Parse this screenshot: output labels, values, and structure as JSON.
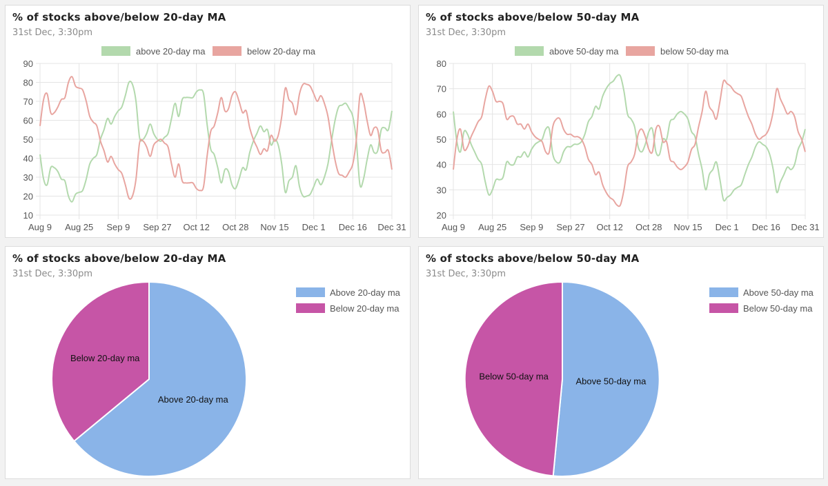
{
  "colors": {
    "above_line": "#b3d9ad",
    "below_line": "#e8a5a0",
    "above_pie": "#8ab4e8",
    "below_pie": "#c655a6",
    "grid": "#e4e4e4"
  },
  "chart_data": [
    {
      "type": "line",
      "title": "% of stocks above/below 20-day MA",
      "subtitle": "31st Dec, 3:30pm",
      "x_tick_labels": [
        "Aug 9",
        "Aug 25",
        "Sep 9",
        "Sep 27",
        "Oct 12",
        "Oct 28",
        "Nov 15",
        "Dec 1",
        "Dec 16",
        "Dec 31"
      ],
      "ylim": [
        10,
        90
      ],
      "yticks": [
        10,
        20,
        30,
        40,
        50,
        60,
        70,
        80,
        90
      ],
      "legend_position": "top-center",
      "series": [
        {
          "name": "above 20-day ma",
          "color_key": "above_line",
          "values": [
            42,
            29,
            26,
            35,
            35,
            33,
            29,
            28,
            20,
            17,
            21,
            22,
            23,
            29,
            37,
            40,
            42,
            50,
            55,
            61,
            58,
            62,
            65,
            67,
            73,
            80,
            79,
            70,
            51,
            50,
            53,
            58,
            53,
            50,
            49,
            51,
            53,
            61,
            69,
            62,
            71,
            72,
            72,
            72,
            75,
            76,
            74,
            58,
            45,
            42,
            35,
            27,
            34,
            33,
            26,
            24,
            29,
            35,
            34,
            43,
            49,
            53,
            57,
            54,
            55,
            47,
            50,
            47,
            37,
            22,
            28,
            30,
            36,
            25,
            20,
            20,
            21,
            25,
            29,
            26,
            30,
            37,
            49,
            60,
            67,
            68,
            69,
            66,
            62,
            49,
            26,
            29,
            39,
            47,
            43,
            44,
            55,
            56,
            55,
            65
          ]
        },
        {
          "name": "below 20-day ma",
          "color_key": "below_line",
          "values": [
            57,
            71,
            74,
            64,
            64,
            67,
            71,
            72,
            80,
            83,
            78,
            77,
            76,
            70,
            62,
            59,
            57,
            49,
            44,
            38,
            41,
            37,
            34,
            32,
            26,
            19,
            20,
            29,
            48,
            49,
            46,
            41,
            47,
            49,
            50,
            48,
            46,
            37,
            30,
            37,
            28,
            27,
            27,
            27,
            24,
            23,
            25,
            41,
            54,
            57,
            64,
            72,
            65,
            66,
            73,
            75,
            70,
            64,
            65,
            56,
            50,
            46,
            42,
            45,
            44,
            52,
            49,
            52,
            62,
            77,
            71,
            69,
            63,
            74,
            79,
            79,
            78,
            74,
            70,
            73,
            69,
            62,
            50,
            39,
            32,
            31,
            30,
            33,
            37,
            50,
            73,
            70,
            60,
            52,
            56,
            55,
            44,
            43,
            44,
            34
          ]
        }
      ]
    },
    {
      "type": "line",
      "title": "% of stocks above/below 50-day MA",
      "subtitle": "31st Dec, 3:30pm",
      "x_tick_labels": [
        "Aug 9",
        "Aug 25",
        "Sep 9",
        "Sep 27",
        "Oct 12",
        "Oct 28",
        "Nov 15",
        "Dec 1",
        "Dec 16",
        "Dec 31"
      ],
      "ylim": [
        20,
        80
      ],
      "yticks": [
        20,
        30,
        40,
        50,
        60,
        70,
        80
      ],
      "legend_position": "top-center",
      "series": [
        {
          "name": "above 50-day ma",
          "color_key": "above_line",
          "values": [
            61,
            49,
            45,
            53,
            52,
            48,
            45,
            42,
            40,
            33,
            28,
            30,
            34,
            34,
            35,
            41,
            40,
            40,
            43,
            43,
            45,
            43,
            46,
            48,
            49,
            50,
            54,
            54,
            44,
            41,
            41,
            45,
            47,
            47,
            48,
            48,
            49,
            52,
            57,
            59,
            63,
            62,
            67,
            70,
            72,
            73,
            75,
            75,
            69,
            60,
            58,
            55,
            47,
            45,
            48,
            53,
            54,
            45,
            44,
            50,
            50,
            57,
            58,
            60,
            61,
            60,
            58,
            53,
            51,
            44,
            38,
            30,
            36,
            38,
            41,
            34,
            26,
            27,
            28,
            30,
            31,
            32,
            36,
            40,
            43,
            47,
            49,
            48,
            47,
            44,
            38,
            29,
            33,
            36,
            39,
            38,
            40,
            46,
            49,
            54
          ]
        },
        {
          "name": "below 50-day ma",
          "color_key": "below_line",
          "values": [
            38,
            50,
            54,
            46,
            47,
            51,
            54,
            57,
            59,
            66,
            71,
            69,
            65,
            65,
            64,
            58,
            59,
            59,
            56,
            56,
            54,
            56,
            53,
            51,
            50,
            49,
            45,
            45,
            55,
            58,
            58,
            54,
            52,
            52,
            51,
            51,
            50,
            47,
            42,
            40,
            36,
            37,
            32,
            29,
            27,
            26,
            24,
            24,
            30,
            39,
            41,
            44,
            52,
            54,
            51,
            46,
            45,
            54,
            55,
            49,
            49,
            42,
            41,
            39,
            38,
            39,
            41,
            46,
            48,
            55,
            61,
            69,
            63,
            61,
            58,
            65,
            73,
            72,
            71,
            69,
            68,
            67,
            63,
            59,
            56,
            52,
            50,
            51,
            52,
            55,
            61,
            70,
            66,
            63,
            60,
            61,
            59,
            53,
            50,
            45
          ]
        }
      ]
    },
    {
      "type": "pie",
      "title": "% of stocks above/below 20-day MA",
      "subtitle": "31st Dec, 3:30pm",
      "legend_position": "top-right",
      "slices": [
        {
          "label": "Above 20-day ma",
          "legend": "Above 20-day ma",
          "value": 64,
          "color_key": "above_pie"
        },
        {
          "label": "Below 20-day ma",
          "legend": "Below 20-day ma",
          "value": 36,
          "color_key": "below_pie"
        }
      ]
    },
    {
      "type": "pie",
      "title": "% of stocks above/below 50-day MA",
      "subtitle": "31st Dec, 3:30pm",
      "legend_position": "top-right",
      "slices": [
        {
          "label": "Above 50-day ma",
          "legend": "Above 50-day ma",
          "value": 51.5,
          "color_key": "above_pie"
        },
        {
          "label": "Below 50-day ma",
          "legend": "Below 50-day ma",
          "value": 48.5,
          "color_key": "below_pie"
        }
      ]
    }
  ]
}
